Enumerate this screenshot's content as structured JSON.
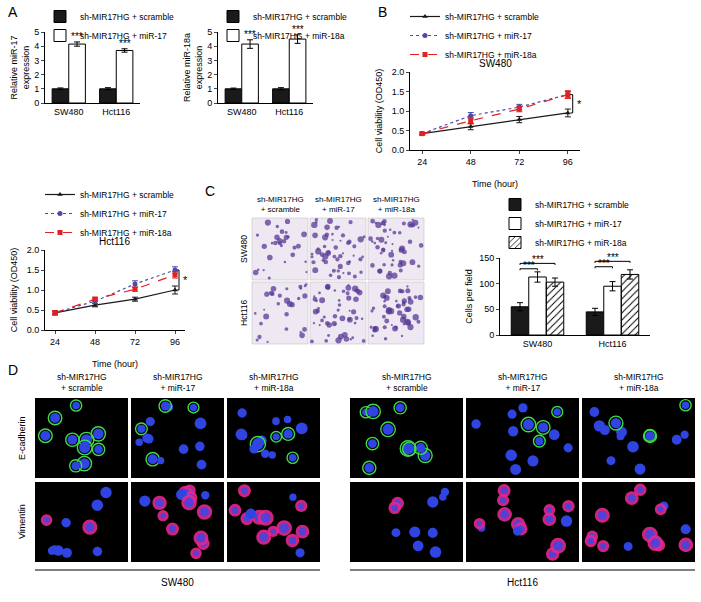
{
  "panel_labels": [
    "A",
    "B",
    "C",
    "D"
  ],
  "chart_data": [
    {
      "type": "bar",
      "ylabel": "Relative miR-17 expression",
      "categories": [
        "SW480",
        "Hct116"
      ],
      "series": [
        {
          "name": "sh-MIR17HG + scramble",
          "color": "#1a1a1a",
          "values": [
            1.0,
            1.0
          ],
          "errors": [
            0.06,
            0.08
          ]
        },
        {
          "name": "sh-MIR17HG + miR-17",
          "color": "#ffffff",
          "values": [
            4.15,
            3.7
          ],
          "errors": [
            0.15,
            0.12
          ]
        }
      ],
      "ylim": [
        0,
        5
      ],
      "yticks": [
        0,
        1,
        2,
        3,
        4,
        5
      ],
      "grid": false,
      "legend": "top",
      "annotations": [
        {
          "text": "***",
          "category": "SW480"
        },
        {
          "text": "***",
          "category": "Hct116"
        }
      ]
    },
    {
      "type": "bar",
      "ylabel": "Relative miR-18a expression",
      "categories": [
        "SW480",
        "Hct116"
      ],
      "series": [
        {
          "name": "sh-MIR17HG + scramble",
          "color": "#1a1a1a",
          "values": [
            1.0,
            1.0
          ],
          "errors": [
            0.05,
            0.08
          ]
        },
        {
          "name": "sh-MIR17HG + miR-18a",
          "color": "#ffffff",
          "values": [
            4.15,
            4.5
          ],
          "errors": [
            0.3,
            0.3
          ]
        }
      ],
      "ylim": [
        0,
        5
      ],
      "yticks": [
        0,
        1,
        2,
        3,
        4,
        5
      ],
      "grid": false,
      "legend": "top",
      "annotations": [
        {
          "text": "***",
          "category": "SW480"
        },
        {
          "text": "***",
          "category": "Hct116"
        }
      ]
    },
    {
      "type": "line",
      "title": "SW480",
      "xlabel": "Time (hour)",
      "ylabel": "Cell viability (OD450)",
      "x": [
        24,
        48,
        72,
        96
      ],
      "series": [
        {
          "name": "sh-MIR17HG + scramble",
          "color": "#1a1a1a",
          "marker": "triangle",
          "line_style": "solid",
          "values": [
            0.42,
            0.6,
            0.78,
            0.95
          ],
          "errors": [
            0.03,
            0.08,
            0.08,
            0.1
          ]
        },
        {
          "name": "sh-MIR17HG + miR-17",
          "color": "#4b4ba8",
          "marker": "circle",
          "line_style": "dotted",
          "values": [
            0.42,
            0.88,
            1.1,
            1.42
          ],
          "errors": [
            0.03,
            0.08,
            0.07,
            0.08
          ]
        },
        {
          "name": "sh-MIR17HG + miR-18a",
          "color": "#e3201f",
          "marker": "square",
          "line_style": "dashed",
          "values": [
            0.42,
            0.75,
            1.05,
            1.42
          ],
          "errors": [
            0.03,
            0.08,
            0.07,
            0.1
          ]
        }
      ],
      "xlim": [
        18,
        102
      ],
      "xticks": [
        24,
        48,
        72,
        96
      ],
      "ylim": [
        0,
        2
      ],
      "yticks": [
        {
          "value": 0,
          "label": "0.0"
        },
        0.5,
        {
          "value": 1,
          "label": "1.0"
        },
        1.5,
        {
          "value": 2,
          "label": "2.0"
        }
      ],
      "grid": false,
      "legend": "top",
      "annotations": [
        {
          "text": "*",
          "x": 96,
          "from": "sh-MIR17HG + scramble",
          "to": "sh-MIR17HG + miR-17"
        }
      ]
    },
    {
      "type": "line",
      "title": "Hct116",
      "xlabel": "Time (hour)",
      "ylabel": "Cell viability (OD450)",
      "x": [
        24,
        48,
        72,
        96
      ],
      "series": [
        {
          "name": "sh-MIR17HG + scramble",
          "color": "#1a1a1a",
          "marker": "triangle",
          "line_style": "solid",
          "values": [
            0.43,
            0.62,
            0.77,
            1.0
          ],
          "errors": [
            0.05,
            0.04,
            0.05,
            0.1
          ]
        },
        {
          "name": "sh-MIR17HG + miR-17",
          "color": "#4b4ba8",
          "marker": "circle",
          "line_style": "dotted",
          "values": [
            0.43,
            0.72,
            1.15,
            1.5
          ],
          "errors": [
            0.05,
            0.06,
            0.08,
            0.08
          ]
        },
        {
          "name": "sh-MIR17HG + miR-18a",
          "color": "#e3201f",
          "marker": "square",
          "line_style": "dashed",
          "values": [
            0.43,
            0.77,
            1.02,
            1.38
          ],
          "errors": [
            0.05,
            0.05,
            0.05,
            0.08
          ]
        }
      ],
      "xlim": [
        18,
        102
      ],
      "xticks": [
        24,
        48,
        72,
        96
      ],
      "ylim": [
        0,
        2
      ],
      "yticks": [
        {
          "value": 0,
          "label": "0.0"
        },
        0.5,
        {
          "value": 1,
          "label": "1.0"
        },
        1.5,
        {
          "value": 2,
          "label": "2.0"
        }
      ],
      "grid": false,
      "legend": "top",
      "annotations": [
        {
          "text": "*",
          "x": 96,
          "from": "sh-MIR17HG + scramble",
          "to": "sh-MIR17HG + miR-17"
        }
      ]
    },
    {
      "type": "bar",
      "ylabel": "Cells per field",
      "categories": [
        "SW480",
        "Hct116"
      ],
      "series": [
        {
          "name": "sh-MIR17HG + scramble",
          "color": "#1a1a1a",
          "values": [
            55,
            45
          ],
          "errors": [
            8,
            7
          ]
        },
        {
          "name": "sh-MIR17HG + miR-17",
          "color": "#ffffff",
          "values": [
            113,
            95
          ],
          "errors": [
            10,
            9
          ]
        },
        {
          "name": "sh-MIR17HG + miR-18a",
          "color": "#ffffff",
          "marker": "hatch",
          "values": [
            103,
            118
          ],
          "errors": [
            8,
            9
          ]
        }
      ],
      "ylim": [
        0,
        150
      ],
      "yticks": [
        0,
        50,
        100,
        150
      ],
      "grid": false,
      "legend": "top",
      "annotations": [
        {
          "text": "***",
          "category": "SW480",
          "from": "sh-MIR17HG + scramble",
          "to": "sh-MIR17HG + miR-17"
        },
        {
          "text": "***",
          "category": "SW480",
          "from": "sh-MIR17HG + scramble",
          "to": "sh-MIR17HG + miR-18a"
        },
        {
          "text": "***",
          "category": "Hct116",
          "from": "sh-MIR17HG + scramble",
          "to": "sh-MIR17HG + miR-17"
        },
        {
          "text": "***",
          "category": "Hct116",
          "from": "sh-MIR17HG + scramble",
          "to": "sh-MIR17HG + miR-18a"
        }
      ]
    }
  ],
  "micrographs": {
    "columns": [
      "sh-MIR17HG + scramble",
      "sh-MIR17HG + miR-17",
      "sh-MIR17HG + miR-18a"
    ],
    "rows": [
      "SW480",
      "Hct116"
    ]
  },
  "immunofluorescence": {
    "rows": [
      "E-cadherin",
      "Vimentin"
    ],
    "groups": [
      {
        "name": "SW480",
        "columns": [
          "sh-MIR17HG + scramble",
          "sh-MIR17HG + miR-17",
          "sh-MIR17HG + miR-18a"
        ]
      },
      {
        "name": "Hct116",
        "columns": [
          "sh-MIR17HG + scramble",
          "sh-MIR17HG + miR-17",
          "sh-MIR17HG + miR-18a"
        ]
      }
    ]
  }
}
